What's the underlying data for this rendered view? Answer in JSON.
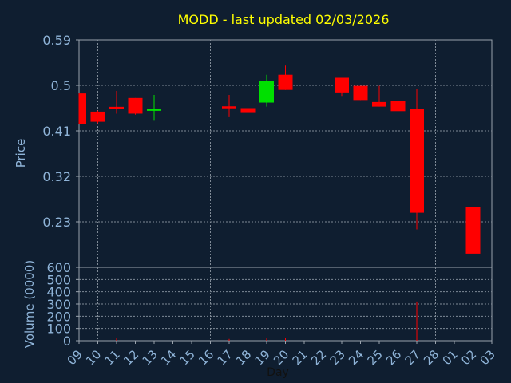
{
  "chart_data": {
    "type": "candlestick",
    "title": "MODD - last updated 02/03/2026",
    "xlabel": "Day",
    "price_panel": {
      "ylabel": "Price",
      "ylim": [
        0.14,
        0.59
      ],
      "yticks": [
        "0.59",
        "0.5",
        "0.41",
        "0.32",
        "0.23"
      ]
    },
    "volume_panel": {
      "ylabel": "Volume (0000)",
      "ylim": [
        0,
        600
      ],
      "yticks": [
        "600",
        "500",
        "400",
        "300",
        "200",
        "100",
        "0"
      ]
    },
    "x_tick_labels": [
      "09",
      "10",
      "11",
      "12",
      "13",
      "14",
      "15",
      "16",
      "17",
      "18",
      "19",
      "20",
      "21",
      "22",
      "23",
      "24",
      "25",
      "26",
      "27",
      "28",
      "01",
      "02",
      "03"
    ],
    "grid": true,
    "candles": [
      {
        "day": "09",
        "open": 0.484,
        "high": 0.484,
        "low": 0.424,
        "close": 0.424,
        "volume": 0
      },
      {
        "day": "10",
        "open": 0.448,
        "high": 0.45,
        "low": 0.425,
        "close": 0.428,
        "volume": 0
      },
      {
        "day": "11",
        "open": 0.456,
        "high": 0.489,
        "low": 0.444,
        "close": 0.453,
        "volume": 20
      },
      {
        "day": "12",
        "open": 0.475,
        "high": 0.475,
        "low": 0.442,
        "close": 0.444,
        "volume": 0
      },
      {
        "day": "13",
        "open": 0.449,
        "high": 0.481,
        "low": 0.43,
        "close": 0.452,
        "volume": 0
      },
      {
        "day": "17",
        "open": 0.457,
        "high": 0.481,
        "low": 0.437,
        "close": 0.455,
        "volume": 15
      },
      {
        "day": "18",
        "open": 0.455,
        "high": 0.476,
        "low": 0.446,
        "close": 0.447,
        "volume": 10
      },
      {
        "day": "19",
        "open": 0.466,
        "high": 0.521,
        "low": 0.458,
        "close": 0.509,
        "volume": 25
      },
      {
        "day": "20",
        "open": 0.521,
        "high": 0.539,
        "low": 0.491,
        "close": 0.491,
        "volume": 25
      },
      {
        "day": "23",
        "open": 0.515,
        "high": 0.515,
        "low": 0.479,
        "close": 0.486,
        "volume": 0
      },
      {
        "day": "24",
        "open": 0.499,
        "high": 0.499,
        "low": 0.471,
        "close": 0.471,
        "volume": 0
      },
      {
        "day": "25",
        "open": 0.467,
        "high": 0.499,
        "low": 0.458,
        "close": 0.458,
        "volume": 0
      },
      {
        "day": "26",
        "open": 0.469,
        "high": 0.478,
        "low": 0.449,
        "close": 0.449,
        "volume": 0
      },
      {
        "day": "27",
        "open": 0.454,
        "high": 0.493,
        "low": 0.215,
        "close": 0.248,
        "volume": 320
      },
      {
        "day": "02",
        "open": 0.259,
        "high": 0.283,
        "low": 0.163,
        "close": 0.167,
        "volume": 545
      }
    ],
    "colors": {
      "background": "#0f1e30",
      "up": "#00e000",
      "down": "#ff0000",
      "grid": "#7f8a96",
      "axis_text": "#8fb4d8",
      "title": "#ffff00"
    }
  }
}
